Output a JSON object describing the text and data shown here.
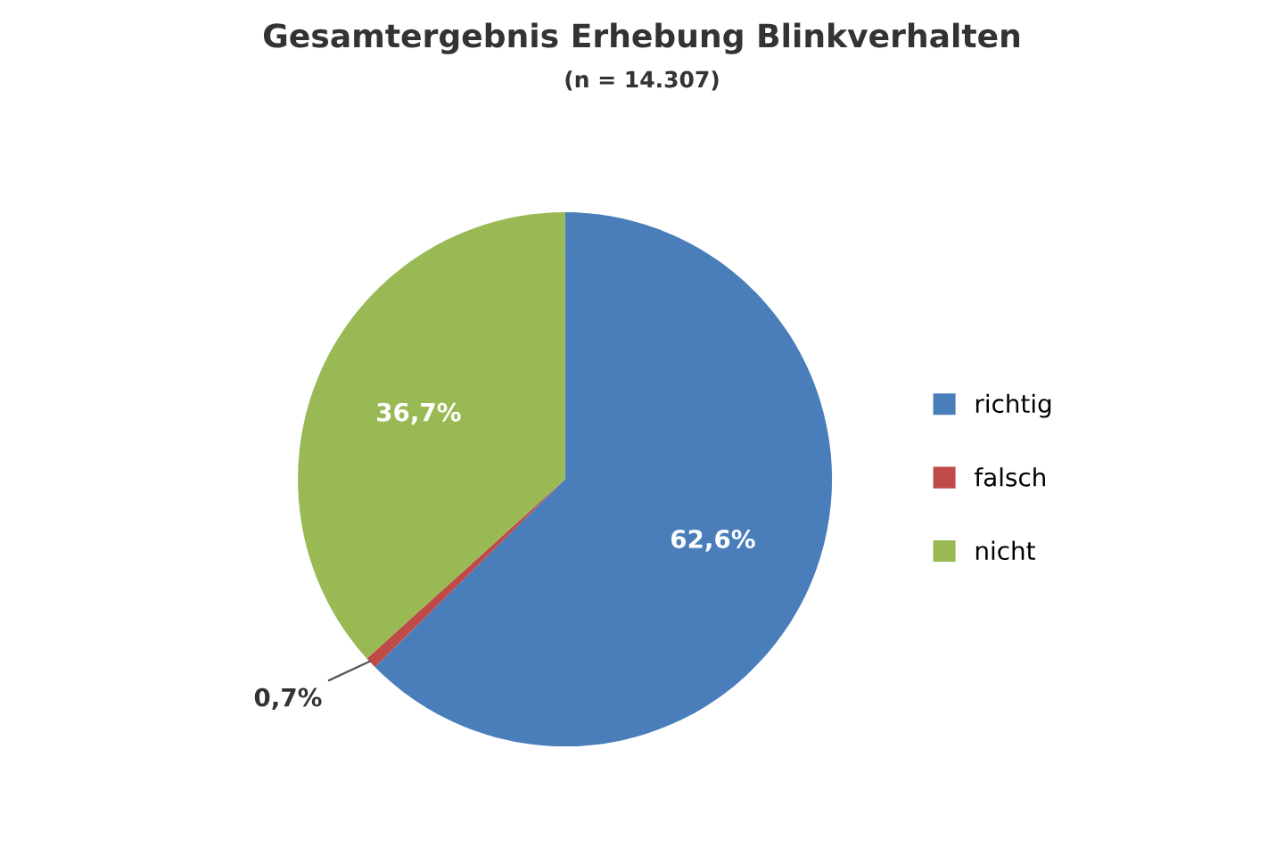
{
  "chart_data": {
    "type": "pie",
    "title": "Gesamtergebnis Erhebung Blinkverhalten",
    "subtitle": "(n = 14.307)",
    "categories": [
      "richtig",
      "falsch",
      "nicht"
    ],
    "values": [
      62.6,
      0.7,
      36.7
    ],
    "colors": [
      "#4a7ebb",
      "#be4b48",
      "#98b954"
    ],
    "value_labels": [
      "62,6%",
      "0,7%",
      "36,7%"
    ],
    "legend": "right"
  }
}
